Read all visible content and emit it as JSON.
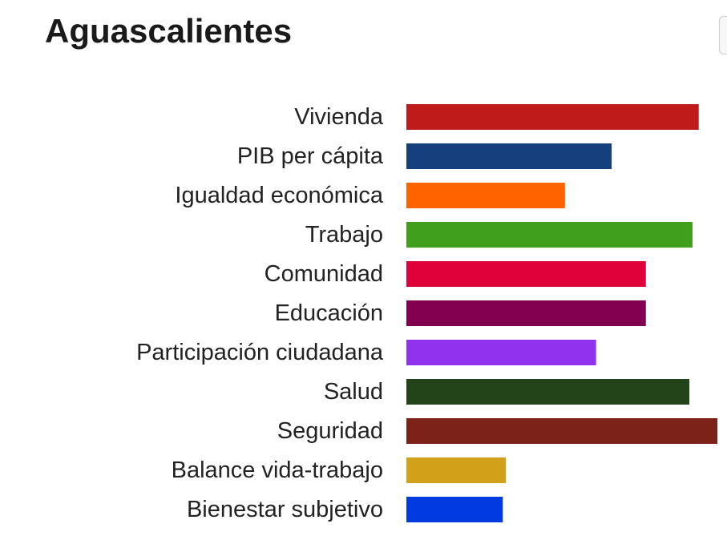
{
  "chart_data": {
    "type": "bar",
    "orientation": "horizontal",
    "title": "Aguascalientes",
    "xlabel": "",
    "ylabel": "",
    "xlim": [
      0,
      10
    ],
    "grid": false,
    "legend": "none",
    "categories": [
      "Vivienda",
      "PIB per cápita",
      "Igualdad económica",
      "Trabajo",
      "Comunidad",
      "Educación",
      "Participación ciudadana",
      "Salud",
      "Seguridad",
      "Balance vida-trabajo",
      "Bienestar subjetivo"
    ],
    "values": [
      9.4,
      6.6,
      5.1,
      9.2,
      7.7,
      7.7,
      6.1,
      9.1,
      10.0,
      3.2,
      3.1
    ],
    "colors": [
      "#c01b1b",
      "#163f7e",
      "#ff6300",
      "#40a01c",
      "#e0003a",
      "#820050",
      "#9033ee",
      "#234419",
      "#7c2219",
      "#d3a01a",
      "#003ae0"
    ]
  }
}
